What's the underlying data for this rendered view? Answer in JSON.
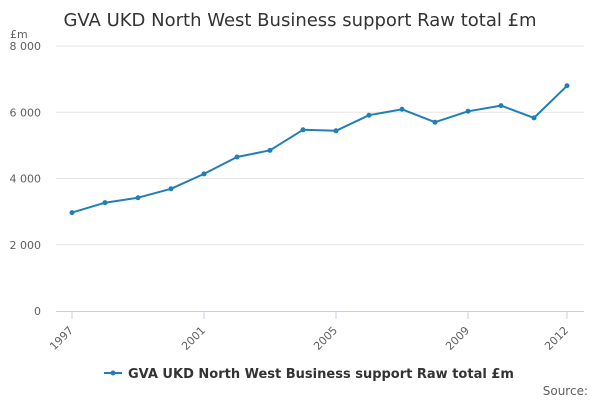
{
  "chart_data": {
    "type": "line",
    "title": "GVA UKD North West Business support Raw total £m",
    "ylabel": "£m",
    "xlabel": "",
    "x": [
      1997,
      1998,
      1999,
      2000,
      2001,
      2002,
      2003,
      2004,
      2005,
      2006,
      2007,
      2008,
      2009,
      2010,
      2011,
      2012
    ],
    "xticks": [
      "1997",
      "2001",
      "2005",
      "2009",
      "2012"
    ],
    "yticks": [
      "0",
      "2 000",
      "4 000",
      "6 000",
      "8 000"
    ],
    "ylim": [
      0,
      8000
    ],
    "grid": true,
    "legend_position": "bottom",
    "series": [
      {
        "name": "GVA UKD North West Business support Raw total £m",
        "color": "#1f7fb6",
        "values": [
          2970,
          3270,
          3420,
          3690,
          4140,
          4650,
          4850,
          5470,
          5440,
          5910,
          6090,
          5700,
          6030,
          6200,
          5830,
          6800
        ]
      }
    ],
    "source": "Source:"
  }
}
